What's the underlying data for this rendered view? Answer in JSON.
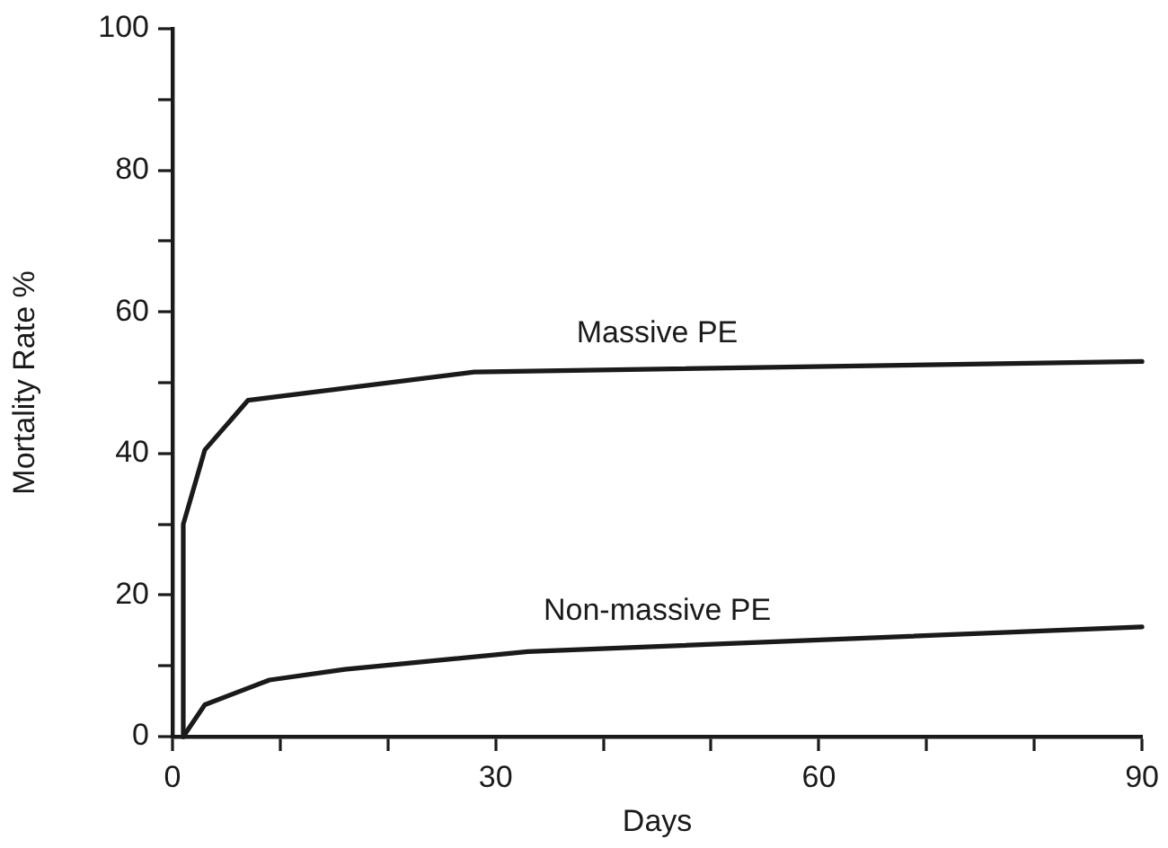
{
  "chart_data": {
    "type": "line",
    "xlabel": "Days",
    "ylabel": "Mortality Rate %",
    "xlim": [
      0,
      90
    ],
    "xticks": [
      0,
      {
        "value": 10,
        "label": null
      },
      {
        "value": 20,
        "label": null
      },
      30,
      {
        "value": 40,
        "label": null
      },
      {
        "value": 50,
        "label": null
      },
      60,
      {
        "value": 70,
        "label": null
      },
      {
        "value": 80,
        "label": null
      },
      90
    ],
    "ylim": [
      0,
      100
    ],
    "yticks": [
      0,
      {
        "value": 10,
        "label": null
      },
      20,
      {
        "value": 30,
        "label": null
      },
      40,
      {
        "value": 50,
        "label": null
      },
      60,
      {
        "value": 70,
        "label": null
      },
      80,
      {
        "value": 90,
        "label": null
      },
      100
    ],
    "grid": false,
    "legend": false,
    "marker": "none",
    "series": [
      {
        "name": "Massive PE",
        "color": "#1a1a1a",
        "x": [
          1,
          1,
          3,
          7,
          28,
          90
        ],
        "values": [
          0,
          30,
          40.5,
          47.5,
          51.5,
          53
        ]
      },
      {
        "name": "Non-massive PE",
        "color": "#1a1a1a",
        "x": [
          1,
          3,
          9,
          16,
          33,
          90
        ],
        "values": [
          0,
          4.5,
          8,
          9.5,
          12,
          15.5
        ]
      }
    ]
  }
}
